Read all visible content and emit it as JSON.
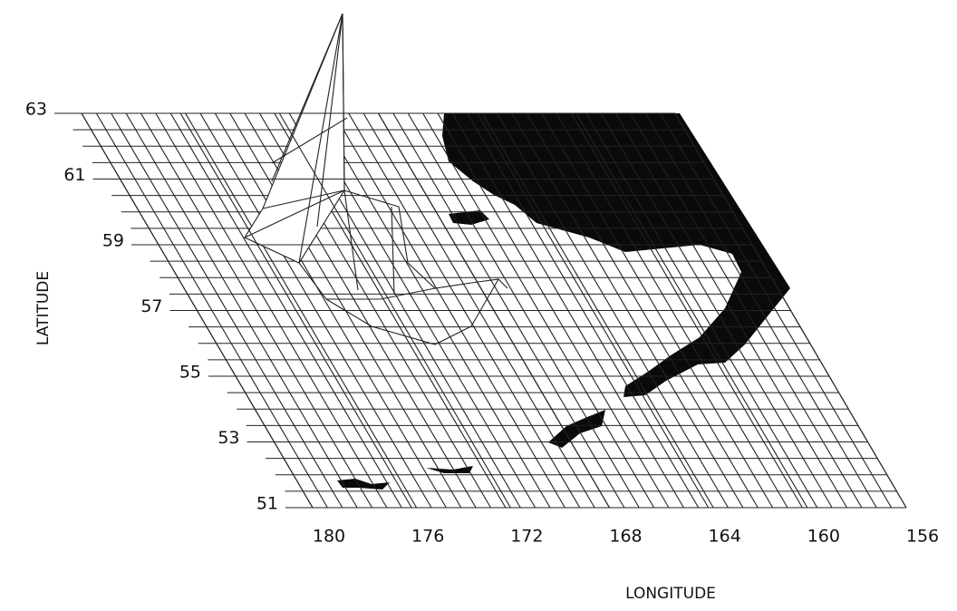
{
  "chart_data": {
    "type": "surface",
    "x_label": "LONGITUDE",
    "y_label": "LATITUDE",
    "xlim": [
      180,
      156
    ],
    "xticks": [
      180,
      176,
      172,
      168,
      164,
      160,
      156
    ],
    "ylim": [
      51,
      63
    ],
    "yticks": [
      63,
      61,
      59,
      57,
      55,
      53,
      51
    ],
    "grid": true
  }
}
